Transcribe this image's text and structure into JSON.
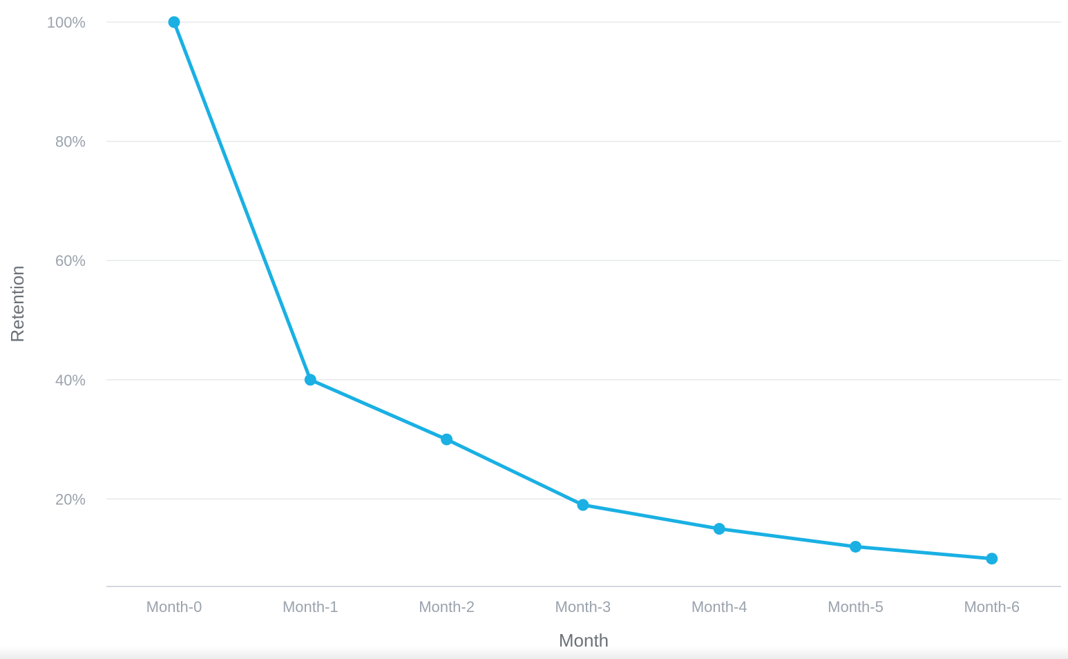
{
  "chart_data": {
    "type": "line",
    "categories": [
      "Month-0",
      "Month-1",
      "Month-2",
      "Month-3",
      "Month-4",
      "Month-5",
      "Month-6"
    ],
    "series": [
      {
        "values": [
          100,
          40,
          30,
          19,
          15,
          12,
          10
        ]
      }
    ],
    "xlabel": "Month",
    "ylabel": "Retention",
    "ylim": [
      0,
      100
    ],
    "yticks": [
      20,
      40,
      60,
      80,
      100
    ],
    "ytick_labels": [
      "20%",
      "40%",
      "60%",
      "80%",
      "100%"
    ],
    "grid": true,
    "legend": "none"
  },
  "colors": {
    "series": "#1ab0e3",
    "gridline": "#e6e8eb",
    "tick_label": "#9ba3ad",
    "axis_title": "#6b7178"
  }
}
